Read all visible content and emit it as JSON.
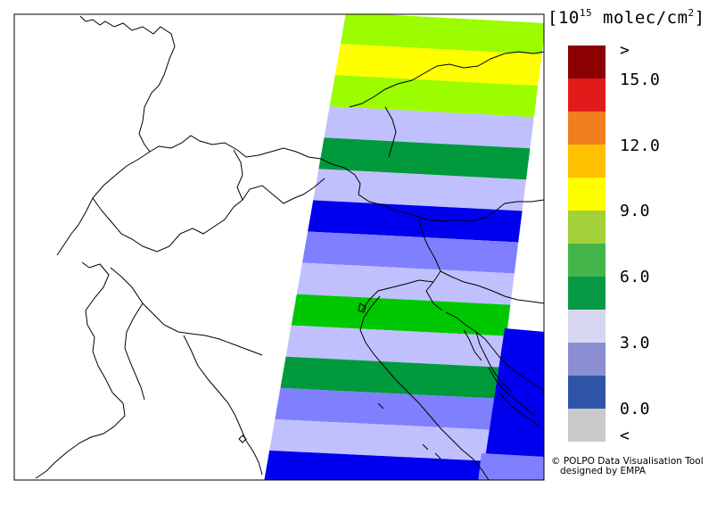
{
  "legend": {
    "unit_prefix": "[10",
    "unit_exponent": "15",
    "unit_suffix": " molec/cm",
    "unit_power": "2",
    "unit_close": "]",
    "ticks": [
      ">",
      "15.0",
      "12.0",
      "9.0",
      "6.0",
      "3.0",
      "0.0",
      "<"
    ],
    "color_scale": [
      "#8b0000",
      "#e11a1a",
      "#f07f20",
      "#ffc000",
      "#ffff00",
      "#a4d13a",
      "#44b649",
      "#079a45",
      "#d6d6f0",
      "#8b8ed0",
      "#2f55a8",
      "#c9c9c9"
    ]
  },
  "credit": {
    "line1": "© POLPO Data Visualisation Tool",
    "line2": "designed by EMPA"
  },
  "map_data": {
    "swath_bands_top_to_bottom": [
      {
        "color": "#9cfc00",
        "value_class": "9.0-10.5"
      },
      {
        "color": "#ffff00",
        "value_class": "10.5-12.0"
      },
      {
        "color": "#9cfc00",
        "value_class": "9.0-10.5"
      },
      {
        "color": "#c0c0ff",
        "value_class": "3.0-4.5"
      },
      {
        "color": "#009a3c",
        "value_class": "4.5-6.0"
      },
      {
        "color": "#c0c0ff",
        "value_class": "3.0-4.5"
      },
      {
        "color": "#0000ee",
        "value_class": "0.0-1.5"
      },
      {
        "color": "#8080ff",
        "value_class": "1.5-3.0"
      },
      {
        "color": "#c0c0ff",
        "value_class": "3.0-4.5"
      },
      {
        "color": "#00c800",
        "value_class": "6.0-7.5"
      },
      {
        "color": "#c0c0ff",
        "value_class": "3.0-4.5"
      },
      {
        "color": "#009a3c",
        "value_class": "4.5-6.0"
      },
      {
        "color": "#8080ff",
        "value_class": "1.5-3.0"
      },
      {
        "color": "#c0c0ff",
        "value_class": "3.0-4.5"
      },
      {
        "color": "#0000ee",
        "value_class": "0.0-1.5"
      }
    ],
    "secondary_swath_color": "#0000ee"
  }
}
